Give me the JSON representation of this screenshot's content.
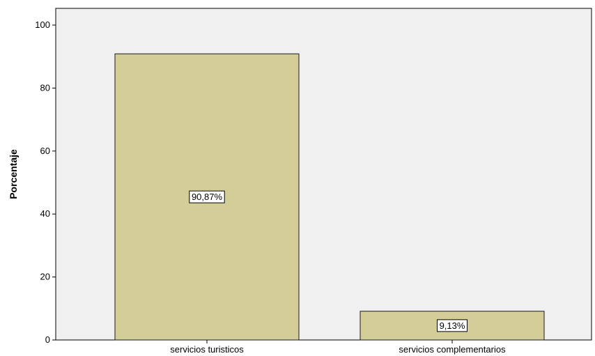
{
  "chart_data": {
    "type": "bar",
    "title": "",
    "xlabel": "",
    "ylabel": "Porcentaje",
    "categories": [
      "servicios turisticos",
      "servicios complementarios"
    ],
    "values": [
      90.87,
      9.13
    ],
    "data_labels": [
      "90,87%",
      "9,13%"
    ],
    "ylim": [
      0,
      105
    ],
    "yticks": [
      0,
      20,
      40,
      60,
      80,
      100
    ],
    "grid": false,
    "legend": "none"
  },
  "colors": {
    "plot_background": "#f0f0f0",
    "bar_fill": "#d3ce98",
    "bar_stroke": "#1a1a1a",
    "axis": "#000000",
    "label_box": "#ffffff"
  }
}
